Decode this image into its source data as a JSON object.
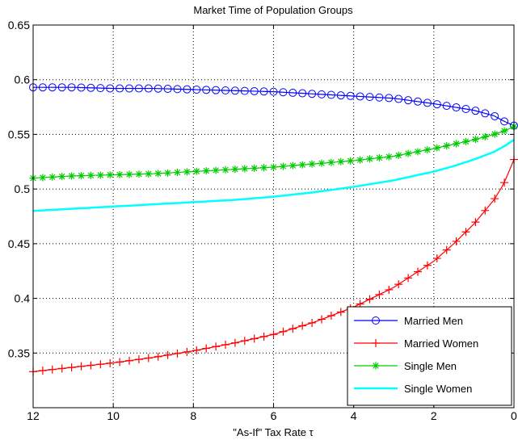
{
  "chart_data": {
    "type": "line",
    "title": "Market Time of Population Groups",
    "xlabel": "\"As-If\" Tax Rate τ",
    "ylabel": "",
    "xlim": [
      12,
      0
    ],
    "ylim": [
      0.3,
      0.65
    ],
    "x_reversed": true,
    "x_ticks": [
      12,
      10,
      8,
      6,
      4,
      2,
      0
    ],
    "x_tick_labels": [
      "12",
      "10",
      "8",
      "6",
      "4",
      "2",
      "0"
    ],
    "y_ticks": [
      0.35,
      0.4,
      0.45,
      0.5,
      0.55,
      0.6,
      0.65
    ],
    "y_tick_labels": [
      "0.35",
      "0.4",
      "0.45",
      "0.5",
      "0.55",
      "0.6",
      "0.65"
    ],
    "grid": true,
    "legend_position": "bottom-right",
    "series": [
      {
        "name": "Married Men",
        "color": "#0000ff",
        "marker": "circle",
        "x": [
          12,
          11,
          10,
          9,
          8,
          7,
          6,
          5,
          4,
          3,
          2,
          1.5,
          1,
          0.5,
          0.25,
          0
        ],
        "y": [
          0.593,
          0.593,
          0.592,
          0.592,
          0.591,
          0.59,
          0.589,
          0.587,
          0.585,
          0.583,
          0.578,
          0.575,
          0.572,
          0.567,
          0.562,
          0.558
        ]
      },
      {
        "name": "Married Women",
        "color": "#ff0000",
        "marker": "plus",
        "x": [
          12,
          11,
          10,
          9,
          8,
          7,
          6,
          5,
          4,
          3,
          2,
          1.5,
          1,
          0.5,
          0.25,
          0
        ],
        "y": [
          0.333,
          0.337,
          0.341,
          0.346,
          0.352,
          0.359,
          0.367,
          0.378,
          0.392,
          0.41,
          0.434,
          0.45,
          0.468,
          0.49,
          0.505,
          0.527
        ]
      },
      {
        "name": "Single Men",
        "color": "#00cc00",
        "marker": "star",
        "x": [
          12,
          11,
          10,
          9,
          8,
          7,
          6,
          5,
          4,
          3,
          2,
          1.5,
          1,
          0.5,
          0.25,
          0
        ],
        "y": [
          0.51,
          0.512,
          0.513,
          0.514,
          0.516,
          0.518,
          0.52,
          0.523,
          0.526,
          0.53,
          0.537,
          0.541,
          0.545,
          0.55,
          0.553,
          0.557
        ]
      },
      {
        "name": "Single Women",
        "color": "#00ffff",
        "marker": "none",
        "x": [
          12,
          11,
          10,
          9,
          8,
          7,
          6,
          5,
          4,
          3,
          2,
          1.5,
          1,
          0.5,
          0.25,
          0
        ],
        "y": [
          0.48,
          0.482,
          0.484,
          0.486,
          0.488,
          0.49,
          0.493,
          0.497,
          0.502,
          0.508,
          0.516,
          0.521,
          0.527,
          0.534,
          0.539,
          0.545
        ]
      }
    ]
  }
}
